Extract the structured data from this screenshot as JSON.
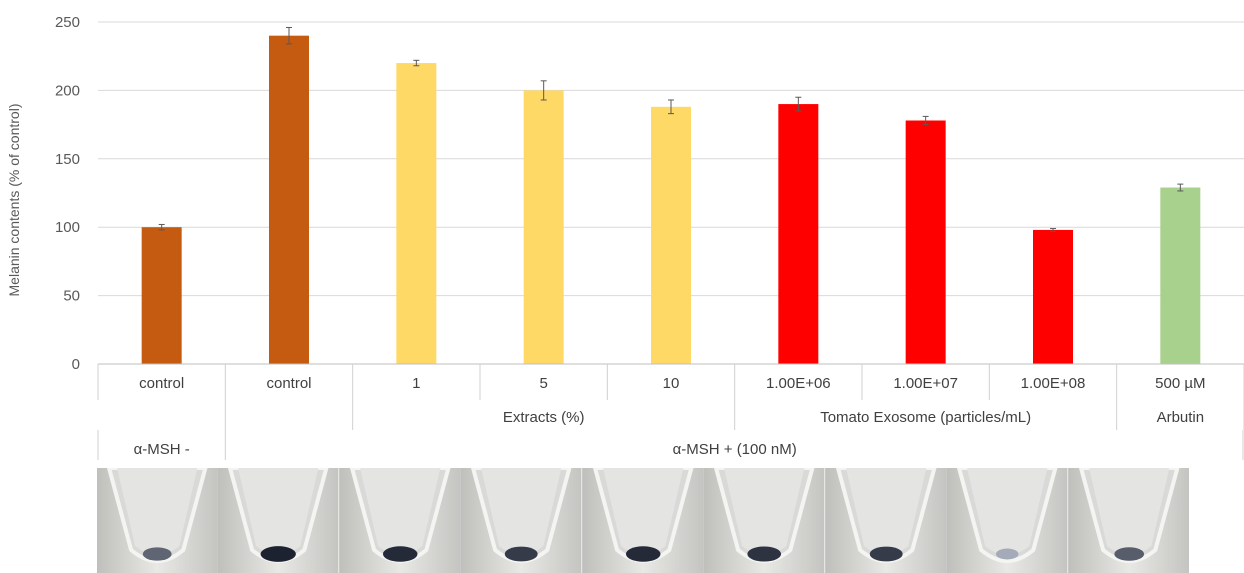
{
  "chart_data": {
    "type": "bar",
    "ylabel": "Melanin contents (% of control)",
    "ylim": [
      0,
      250
    ],
    "yticks": [
      0,
      50,
      100,
      150,
      200,
      250
    ],
    "grid": true,
    "categories": [
      "control",
      "control",
      "1",
      "5",
      "10",
      "1.00E+06",
      "1.00E+07",
      "1.00E+08",
      "500 µM"
    ],
    "values": [
      100,
      240,
      220,
      200,
      188,
      190,
      178,
      98,
      129
    ],
    "errors": [
      2,
      6,
      2,
      7,
      5,
      5,
      3,
      1,
      2.5
    ],
    "colors": [
      "#c55a11",
      "#c55a11",
      "#ffd966",
      "#ffd966",
      "#ffd966",
      "#ff0000",
      "#ff0000",
      "#ff0000",
      "#a9d18e"
    ],
    "group_labels": [
      {
        "label": "Extracts (%)",
        "start": 2,
        "end": 4
      },
      {
        "label": "Tomato Exosome (particles/mL)",
        "start": 5,
        "end": 7
      },
      {
        "label": "Arbutin",
        "start": 8,
        "end": 8
      }
    ],
    "treatment_labels": [
      {
        "label": "α-MSH -",
        "start": 0,
        "end": 0
      },
      {
        "label": "α-MSH + (100 nM)",
        "start": 1,
        "end": 8
      }
    ]
  },
  "photos": {
    "count": 9,
    "pellet_intensity": [
      0.55,
      0.95,
      0.9,
      0.8,
      0.9,
      0.85,
      0.8,
      0.15,
      0.6
    ]
  }
}
